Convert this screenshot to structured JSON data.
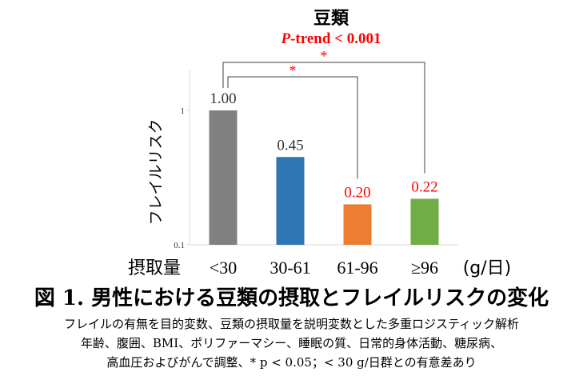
{
  "chart_data": {
    "type": "bar",
    "title": "豆類",
    "subtitle_prefix": "P",
    "subtitle_rest": "-trend < 0.001",
    "ylabel": "フレイルリスク",
    "xlabel": "摂取量",
    "unit_label": "(g/日)",
    "yscale": "log",
    "ylim": [
      0.1,
      1
    ],
    "yticks": [
      {
        "value": 1,
        "label": "1"
      },
      {
        "value": 0.1,
        "label": "0.1"
      }
    ],
    "categories": [
      "<30",
      "30-61",
      "61-96",
      "≥96"
    ],
    "values": [
      1.0,
      0.45,
      0.2,
      0.22
    ],
    "value_labels": [
      "1.00",
      "0.45",
      "0.20",
      "0.22"
    ],
    "colors": [
      "#808080",
      "#2e75b6",
      "#ed7d31",
      "#70ad47"
    ],
    "label_colors": [
      "#333333",
      "#333333",
      "#ff0000",
      "#ff0000"
    ],
    "significance": [
      {
        "from": 0,
        "to": 2,
        "mark": "*"
      },
      {
        "from": 0,
        "to": 3,
        "mark": "*"
      }
    ]
  },
  "caption": {
    "figure_title": "図 1. 男性における豆類の摂取とフレイルリスクの変化",
    "note_line1": "フレイルの有無を目的変数、豆類の摂取量を説明変数とした多重ロジスティック解析",
    "note_line2": "年齢、腹囲、BMI、ポリファーマシー、睡眠の質、日常的身体活動、糖尿病、",
    "note_line3": "高血圧およびがんで調整、* p < 0.05；< 30 g/日群との有意差あり"
  },
  "colors": {
    "significance": "#ff0000",
    "axis": "#d9d9d9",
    "bracket": "#404040"
  }
}
